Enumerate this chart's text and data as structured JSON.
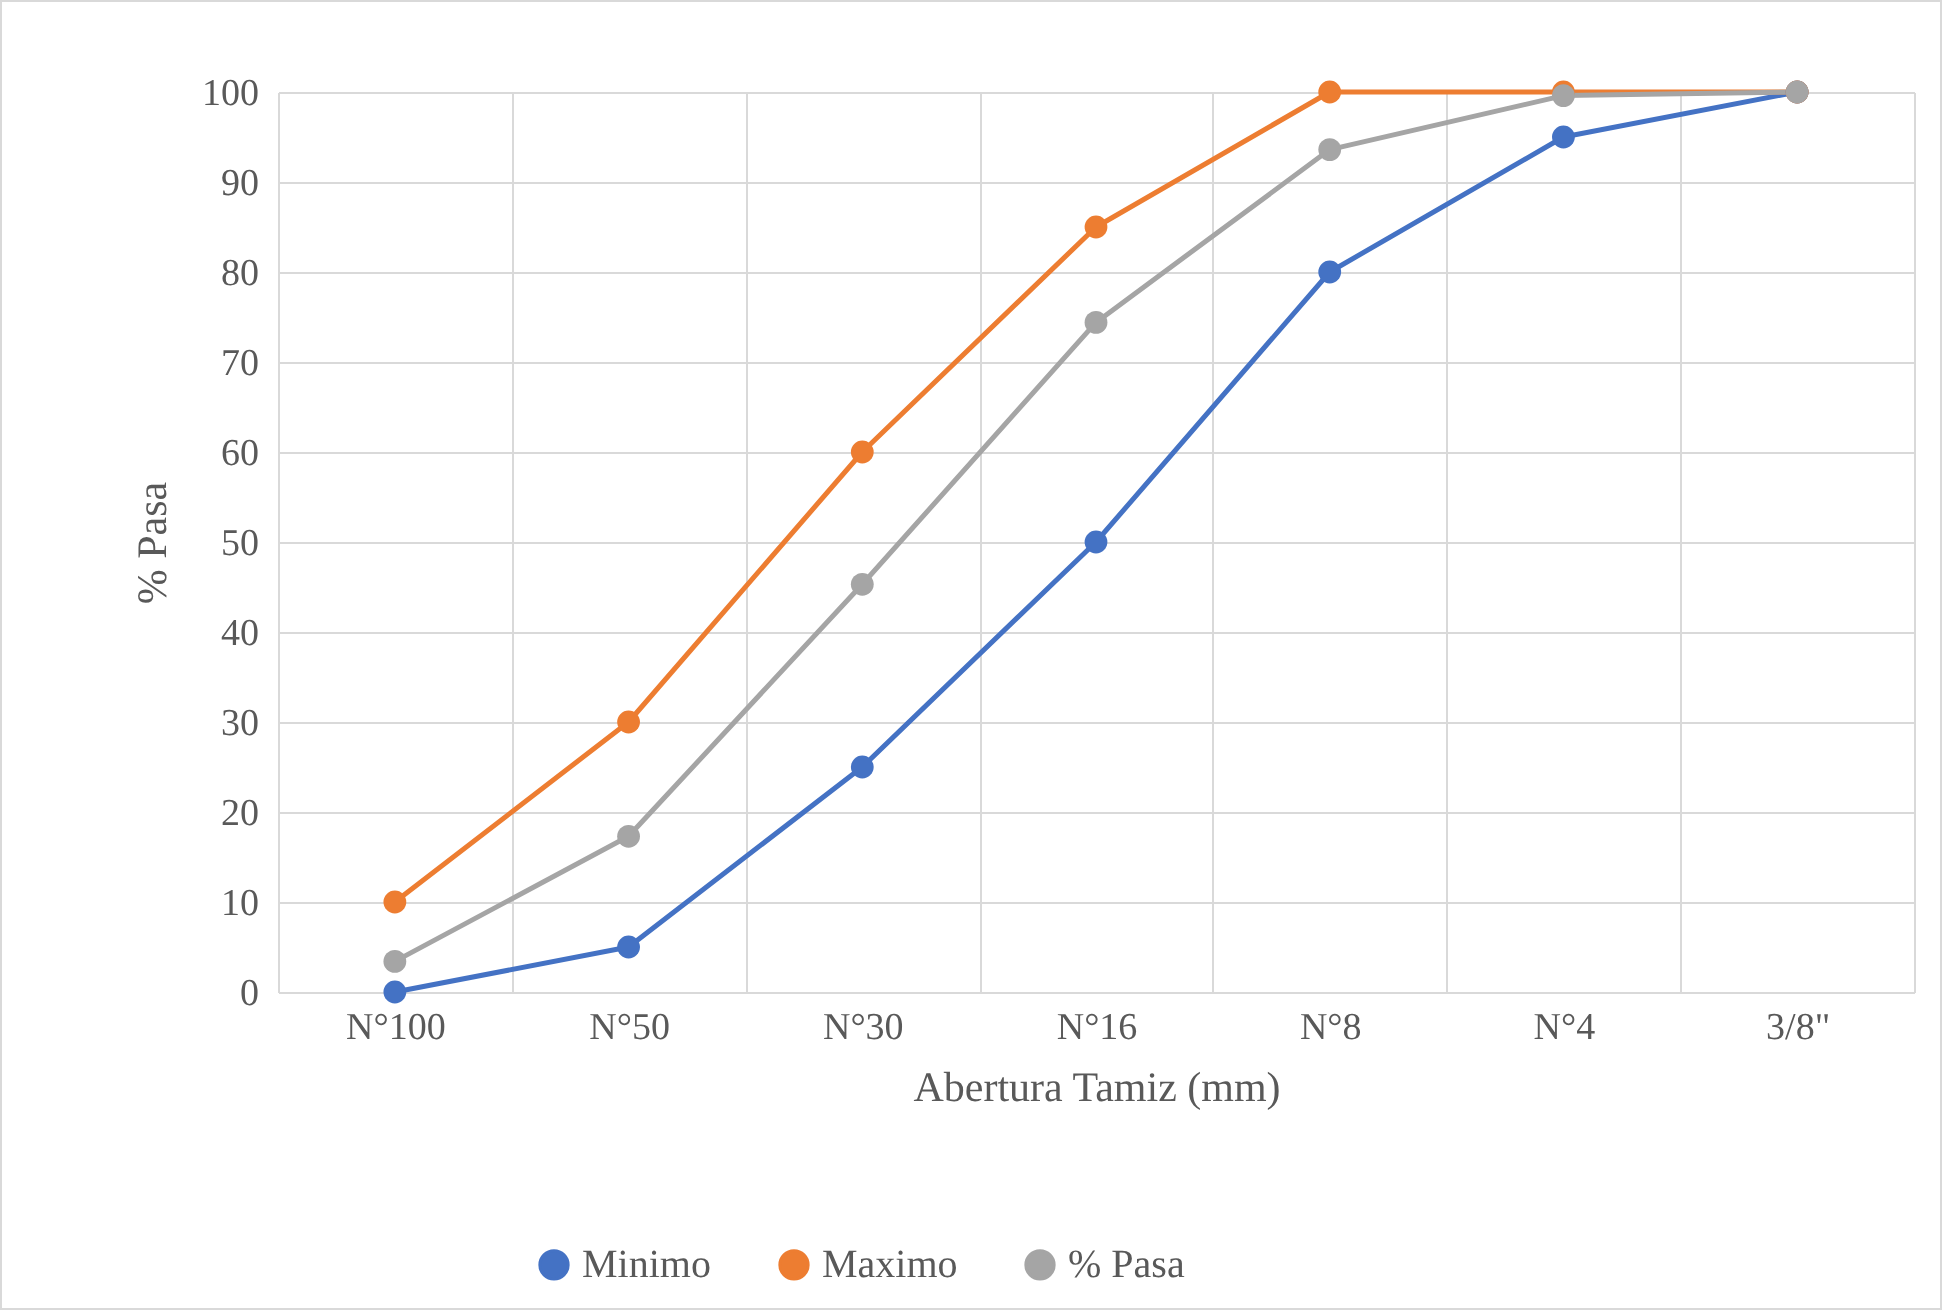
{
  "chart_data": {
    "type": "line",
    "xlabel": "Abertura Tamiz (mm)",
    "ylabel": "% Pasa",
    "categories": [
      "N°100",
      "N°50",
      "N°30",
      "N°16",
      "N°8",
      "N°4",
      "3/8\""
    ],
    "series": [
      {
        "name": "Minimo",
        "color": "#4472c4",
        "values": [
          0,
          5,
          25,
          50,
          80,
          95,
          100
        ]
      },
      {
        "name": "Maximo",
        "color": "#ed7d31",
        "values": [
          10,
          30,
          60,
          85,
          100,
          100,
          100
        ]
      },
      {
        "name": "% Pasa",
        "color": "#a5a5a5",
        "values": [
          3.4,
          17.3,
          45.3,
          74.4,
          93.6,
          99.6,
          100
        ]
      }
    ],
    "ylim": [
      0,
      100
    ],
    "yticks": [
      0,
      10,
      20,
      30,
      40,
      50,
      60,
      70,
      80,
      90,
      100
    ],
    "grid": true,
    "legend": "bottom",
    "marker": "circle",
    "line_style": "solid"
  }
}
